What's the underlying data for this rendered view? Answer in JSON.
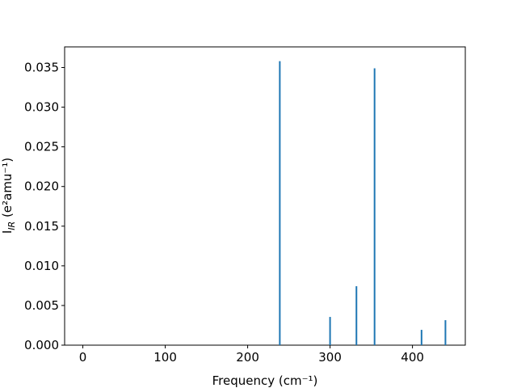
{
  "chart_data": {
    "type": "bar",
    "xlabel": "Frequency (cm⁻¹)",
    "ylabel": {
      "main": "I",
      "sub": "IR",
      "rest": " (e²amu⁻¹)"
    },
    "x": [
      239,
      300,
      332,
      354,
      411,
      440
    ],
    "values": [
      0.0358,
      0.00356,
      0.00743,
      0.0349,
      0.00193,
      0.00315
    ],
    "color": "#1f77b4",
    "xlim": [
      -22.1,
      464.1
    ],
    "ylim": [
      0,
      0.0376
    ],
    "xticks": [
      0,
      100,
      200,
      300,
      400
    ],
    "yticks": [
      {
        "value": 0,
        "label": "0.000"
      },
      {
        "value": 0.005,
        "label": "0.005"
      },
      {
        "value": 0.01,
        "label": "0.010"
      },
      {
        "value": 0.015,
        "label": "0.015"
      },
      {
        "value": 0.02,
        "label": "0.020"
      },
      {
        "value": 0.025,
        "label": "0.025"
      },
      {
        "value": 0.03,
        "label": "0.030"
      },
      {
        "value": 0.035,
        "label": "0.035"
      }
    ]
  }
}
